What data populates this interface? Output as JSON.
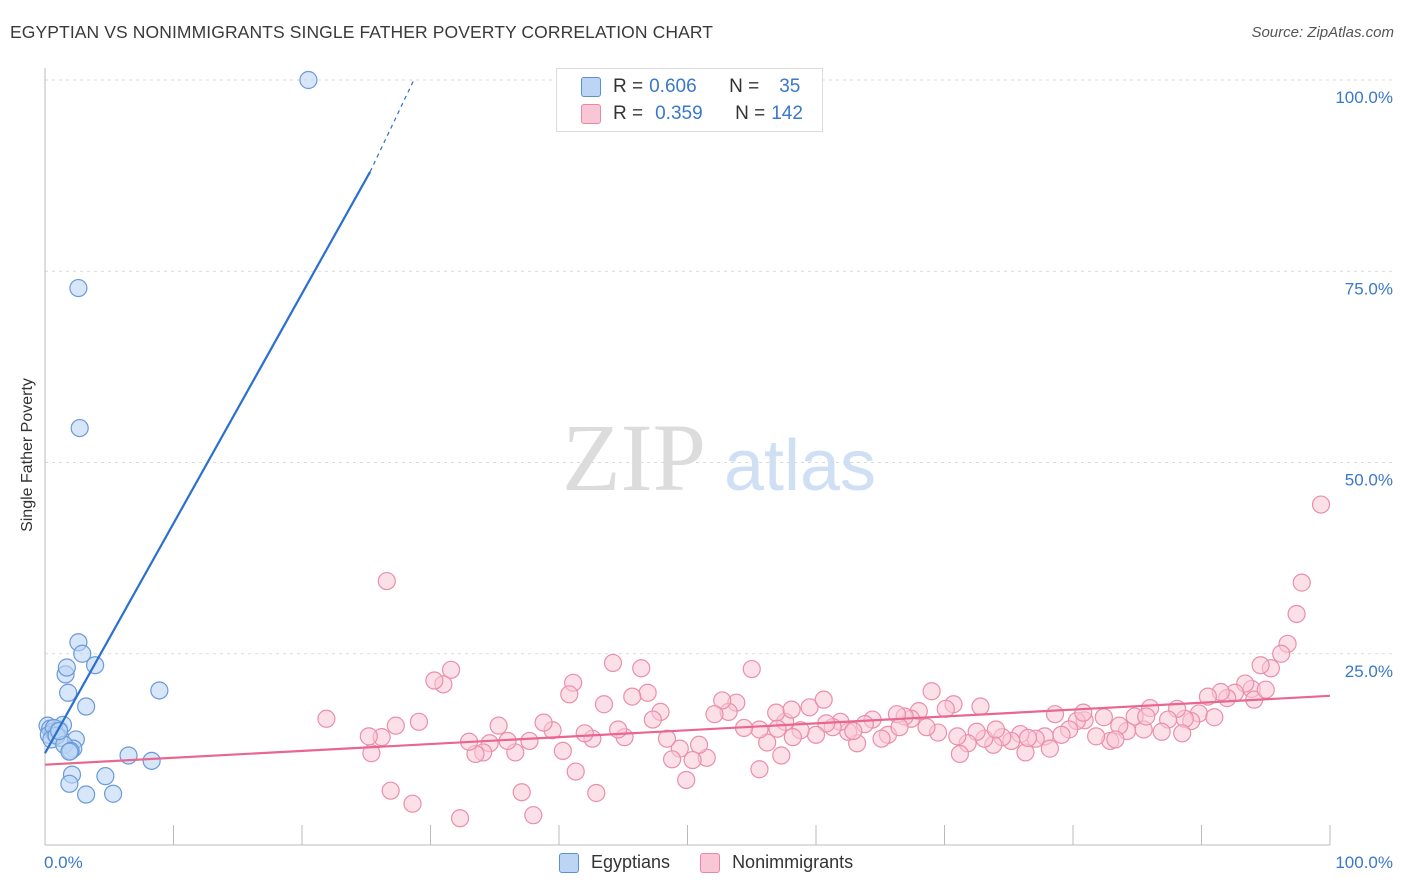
{
  "title": "EGYPTIAN VS NONIMMIGRANTS SINGLE FATHER POVERTY CORRELATION CHART",
  "source": "Source: ZipAtlas.com",
  "watermark": {
    "zip": "ZIP",
    "atlas": "atlas"
  },
  "colors": {
    "blue_fill": "#bcd5f5",
    "blue_stroke": "#6a9ad8",
    "blue_line": "#2b6fcf",
    "pink_fill": "#f9c6d6",
    "pink_stroke": "#ea8eae",
    "pink_line": "#e8668f",
    "tick_text": "#3a78c9",
    "grid": "#d9d9d9"
  },
  "legend_top": [
    {
      "r_label": "R =",
      "r_value": "0.606",
      "n_label": "N =",
      "n_value": "35"
    },
    {
      "r_label": "R =",
      "r_value": "0.359",
      "n_label": "N =",
      "n_value": "142"
    }
  ],
  "legend_bottom": [
    "Egyptians",
    "Nonimmigrants"
  ],
  "chart_data": {
    "type": "scatter",
    "title": "EGYPTIAN VS NONIMMIGRANTS SINGLE FATHER POVERTY CORRELATION CHART",
    "xlabel": "",
    "ylabel": "Single Father Poverty",
    "xlim": [
      0,
      100
    ],
    "ylim": [
      0,
      102
    ],
    "x_tick_labels": [
      "0.0%",
      "100.0%"
    ],
    "y_ticks": [
      25,
      50,
      75,
      100
    ],
    "y_tick_labels": [
      "25.0%",
      "50.0%",
      "75.0%",
      "100.0%"
    ],
    "grid": "horizontal dashed",
    "legend_placement": "bottom-center",
    "series": [
      {
        "name": "Egyptians",
        "r": 0.606,
        "n": 35,
        "trend": {
          "x": [
            0,
            25.3
          ],
          "y": [
            12.0,
            88.0
          ],
          "dashed_extension_to": [
            28.7,
            100
          ]
        },
        "points": [
          [
            20.5,
            100.0
          ],
          [
            2.6,
            72.8
          ],
          [
            2.7,
            54.5
          ],
          [
            2.6,
            26.5
          ],
          [
            2.9,
            25.0
          ],
          [
            1.6,
            22.3
          ],
          [
            1.7,
            23.2
          ],
          [
            3.9,
            23.5
          ],
          [
            1.8,
            19.9
          ],
          [
            3.2,
            18.1
          ],
          [
            8.9,
            20.2
          ],
          [
            0.2,
            15.6
          ],
          [
            0.4,
            15.2
          ],
          [
            0.6,
            14.8
          ],
          [
            0.3,
            14.4
          ],
          [
            0.8,
            14.5
          ],
          [
            1.1,
            15.1
          ],
          [
            1.4,
            15.7
          ],
          [
            0.7,
            15.3
          ],
          [
            1.2,
            14.0
          ],
          [
            0.5,
            13.8
          ],
          [
            0.9,
            14.3
          ],
          [
            2.4,
            13.8
          ],
          [
            2.2,
            12.6
          ],
          [
            1.5,
            13.1
          ],
          [
            2.0,
            12.3
          ],
          [
            1.9,
            12.2
          ],
          [
            6.5,
            11.7
          ],
          [
            8.3,
            11.0
          ],
          [
            2.1,
            9.2
          ],
          [
            4.7,
            9.0
          ],
          [
            1.9,
            8.0
          ],
          [
            3.2,
            6.6
          ],
          [
            5.3,
            6.7
          ],
          [
            1.1,
            14.9
          ]
        ]
      },
      {
        "name": "Nonimmigrants",
        "r": 0.359,
        "n": 142,
        "trend": {
          "x": [
            0,
            100
          ],
          "y": [
            10.5,
            19.5
          ]
        },
        "points": [
          [
            26.6,
            34.5
          ],
          [
            99.3,
            44.5
          ],
          [
            97.8,
            34.3
          ],
          [
            97.4,
            30.2
          ],
          [
            96.7,
            26.3
          ],
          [
            96.2,
            25.0
          ],
          [
            95.4,
            23.1
          ],
          [
            94.6,
            23.5
          ],
          [
            93.9,
            20.4
          ],
          [
            93.4,
            21.1
          ],
          [
            92.6,
            19.9
          ],
          [
            92.0,
            19.2
          ],
          [
            91.5,
            20.0
          ],
          [
            90.5,
            19.4
          ],
          [
            89.8,
            17.2
          ],
          [
            89.2,
            16.2
          ],
          [
            88.7,
            16.5
          ],
          [
            88.1,
            17.8
          ],
          [
            87.4,
            16.4
          ],
          [
            86.9,
            14.8
          ],
          [
            86.0,
            17.9
          ],
          [
            85.5,
            15.1
          ],
          [
            84.8,
            16.8
          ],
          [
            84.2,
            14.9
          ],
          [
            83.6,
            15.6
          ],
          [
            82.9,
            13.6
          ],
          [
            82.4,
            16.7
          ],
          [
            81.8,
            14.2
          ],
          [
            80.9,
            16.3
          ],
          [
            80.3,
            16.2
          ],
          [
            79.7,
            15.1
          ],
          [
            79.1,
            14.4
          ],
          [
            78.6,
            17.1
          ],
          [
            77.8,
            14.2
          ],
          [
            77.1,
            13.9
          ],
          [
            76.3,
            12.1
          ],
          [
            75.9,
            14.5
          ],
          [
            75.2,
            13.6
          ],
          [
            74.5,
            14.1
          ],
          [
            73.8,
            13.1
          ],
          [
            73.1,
            13.9
          ],
          [
            72.5,
            14.8
          ],
          [
            71.8,
            13.3
          ],
          [
            71.2,
            11.9
          ],
          [
            70.7,
            18.4
          ],
          [
            70.1,
            17.8
          ],
          [
            69.5,
            14.7
          ],
          [
            68.6,
            15.4
          ],
          [
            68.0,
            17.5
          ],
          [
            67.4,
            16.5
          ],
          [
            66.9,
            16.8
          ],
          [
            66.3,
            17.1
          ],
          [
            65.6,
            14.4
          ],
          [
            65.1,
            13.9
          ],
          [
            64.4,
            16.4
          ],
          [
            63.8,
            15.8
          ],
          [
            63.2,
            13.3
          ],
          [
            62.5,
            14.8
          ],
          [
            61.9,
            16.1
          ],
          [
            61.3,
            15.4
          ],
          [
            60.8,
            15.9
          ],
          [
            60.0,
            14.4
          ],
          [
            59.5,
            18.0
          ],
          [
            58.8,
            15.0
          ],
          [
            58.2,
            14.1
          ],
          [
            57.6,
            16.1
          ],
          [
            56.9,
            17.3
          ],
          [
            56.2,
            13.4
          ],
          [
            55.6,
            15.1
          ],
          [
            55.0,
            23.0
          ],
          [
            54.4,
            15.3
          ],
          [
            53.8,
            18.6
          ],
          [
            53.2,
            17.4
          ],
          [
            52.7,
            18.9
          ],
          [
            52.1,
            17.1
          ],
          [
            51.5,
            11.4
          ],
          [
            50.9,
            13.1
          ],
          [
            50.4,
            11.1
          ],
          [
            49.9,
            8.5
          ],
          [
            49.4,
            12.6
          ],
          [
            48.8,
            11.2
          ],
          [
            48.4,
            13.9
          ],
          [
            47.9,
            17.4
          ],
          [
            47.3,
            16.4
          ],
          [
            46.9,
            19.9
          ],
          [
            46.4,
            23.1
          ],
          [
            45.7,
            19.4
          ],
          [
            45.1,
            14.1
          ],
          [
            44.6,
            15.1
          ],
          [
            44.2,
            23.8
          ],
          [
            43.5,
            18.4
          ],
          [
            42.9,
            6.8
          ],
          [
            42.6,
            13.9
          ],
          [
            42.0,
            14.6
          ],
          [
            41.1,
            21.2
          ],
          [
            40.8,
            19.7
          ],
          [
            40.3,
            12.3
          ],
          [
            39.5,
            15.0
          ],
          [
            38.8,
            16.0
          ],
          [
            38.0,
            3.9
          ],
          [
            37.7,
            13.6
          ],
          [
            37.1,
            6.9
          ],
          [
            36.6,
            12.1
          ],
          [
            36.0,
            13.6
          ],
          [
            35.3,
            15.6
          ],
          [
            34.6,
            13.3
          ],
          [
            34.1,
            12.1
          ],
          [
            33.5,
            11.9
          ],
          [
            33.0,
            13.5
          ],
          [
            32.3,
            3.5
          ],
          [
            31.6,
            22.9
          ],
          [
            31.0,
            21.0
          ],
          [
            30.3,
            21.5
          ],
          [
            29.1,
            16.1
          ],
          [
            28.6,
            5.4
          ],
          [
            27.3,
            15.6
          ],
          [
            26.9,
            7.1
          ],
          [
            26.2,
            14.1
          ],
          [
            25.4,
            12.0
          ],
          [
            25.2,
            14.2
          ],
          [
            21.9,
            16.5
          ],
          [
            41.3,
            9.6
          ],
          [
            55.6,
            9.9
          ],
          [
            57.3,
            11.7
          ],
          [
            58.1,
            17.7
          ],
          [
            60.6,
            19.0
          ],
          [
            62.9,
            14.9
          ],
          [
            66.5,
            15.4
          ],
          [
            69.0,
            20.1
          ],
          [
            71.0,
            14.2
          ],
          [
            72.8,
            18.1
          ],
          [
            74.0,
            15.1
          ],
          [
            76.5,
            14.0
          ],
          [
            78.2,
            12.6
          ],
          [
            80.8,
            17.3
          ],
          [
            83.3,
            13.8
          ],
          [
            85.7,
            16.8
          ],
          [
            88.5,
            14.6
          ],
          [
            91.0,
            16.7
          ],
          [
            94.1,
            19.0
          ],
          [
            95.0,
            20.3
          ],
          [
            57.0,
            15.2
          ]
        ]
      }
    ]
  }
}
